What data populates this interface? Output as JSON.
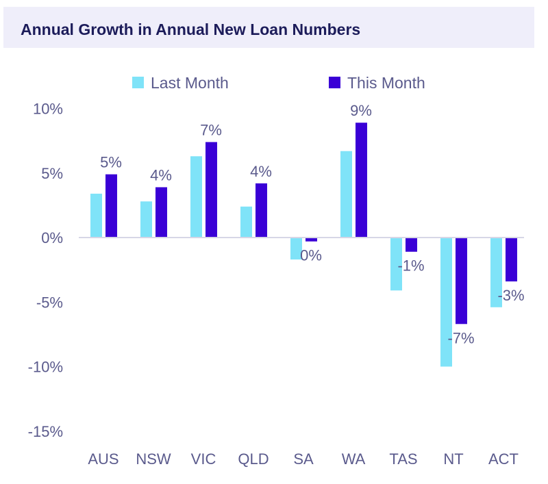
{
  "chart_data": {
    "type": "bar",
    "title": "Annual Growth in Annual New Loan Numbers",
    "categories": [
      "AUS",
      "NSW",
      "VIC",
      "QLD",
      "SA",
      "WA",
      "TAS",
      "NT",
      "ACT"
    ],
    "series": [
      {
        "name": "Last Month",
        "color": "#7fe3f8",
        "values": [
          3.4,
          2.8,
          6.3,
          2.4,
          -1.7,
          6.7,
          -4.1,
          -10.0,
          -5.4
        ]
      },
      {
        "name": "This Month",
        "color": "#3a00d6",
        "values": [
          4.9,
          3.9,
          7.4,
          4.2,
          -0.3,
          8.9,
          -1.1,
          -6.7,
          -3.4
        ],
        "data_labels": [
          "5%",
          "4%",
          "7%",
          "4%",
          "0%",
          "9%",
          "-1%",
          "-7%",
          "-3%"
        ]
      }
    ],
    "ylim": [
      -15,
      10
    ],
    "yticks": [
      10,
      5,
      0,
      -5,
      -10,
      -15
    ],
    "ytick_labels": [
      "10%",
      "5%",
      "0%",
      "-5%",
      "-10%",
      "-15%"
    ],
    "grid": false,
    "legend": "top"
  }
}
